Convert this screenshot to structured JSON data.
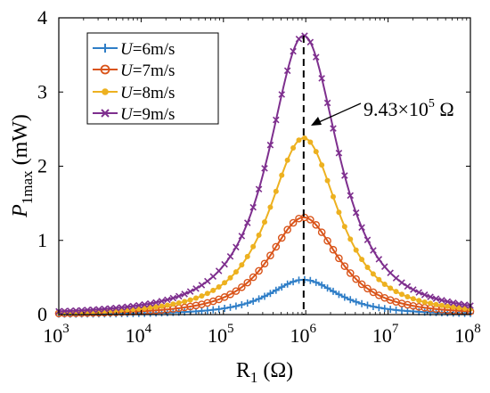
{
  "chart_data": {
    "type": "line",
    "xscale": "log",
    "xlim": [
      1000,
      100000000
    ],
    "ylim": [
      0,
      4
    ],
    "xlabel_main": "R",
    "xlabel_sub": "1",
    "xlabel_unit": " (Ω)",
    "ylabel_main": "P",
    "ylabel_sub": "1max",
    "ylabel_unit": " (mW)",
    "xticks": [
      {
        "base": "10",
        "exp": "3"
      },
      {
        "base": "10",
        "exp": "4"
      },
      {
        "base": "10",
        "exp": "5"
      },
      {
        "base": "10",
        "exp": "6"
      },
      {
        "base": "10",
        "exp": "7"
      },
      {
        "base": "10",
        "exp": "8"
      }
    ],
    "yticks": [
      "0",
      "1",
      "2",
      "3",
      "4"
    ],
    "peak_resistance": 943000,
    "annotation": {
      "mantissa": "9.43×10",
      "exp": "5",
      "unit": " Ω"
    },
    "legend_position": "top-left",
    "grid": false,
    "series": [
      {
        "name_var": "U",
        "name_rest": "=6m/s",
        "peak": 0.47,
        "color": "#2f7ec7",
        "marker": "plus"
      },
      {
        "name_var": "U",
        "name_rest": "=7m/s",
        "peak": 1.31,
        "color": "#d9541a",
        "marker": "circle"
      },
      {
        "name_var": "U",
        "name_rest": "=8m/s",
        "peak": 2.38,
        "color": "#edb120",
        "marker": "dot"
      },
      {
        "name_var": "U",
        "name_rest": "=9m/s",
        "peak": 3.76,
        "color": "#7e2f8e",
        "marker": "x"
      }
    ]
  }
}
